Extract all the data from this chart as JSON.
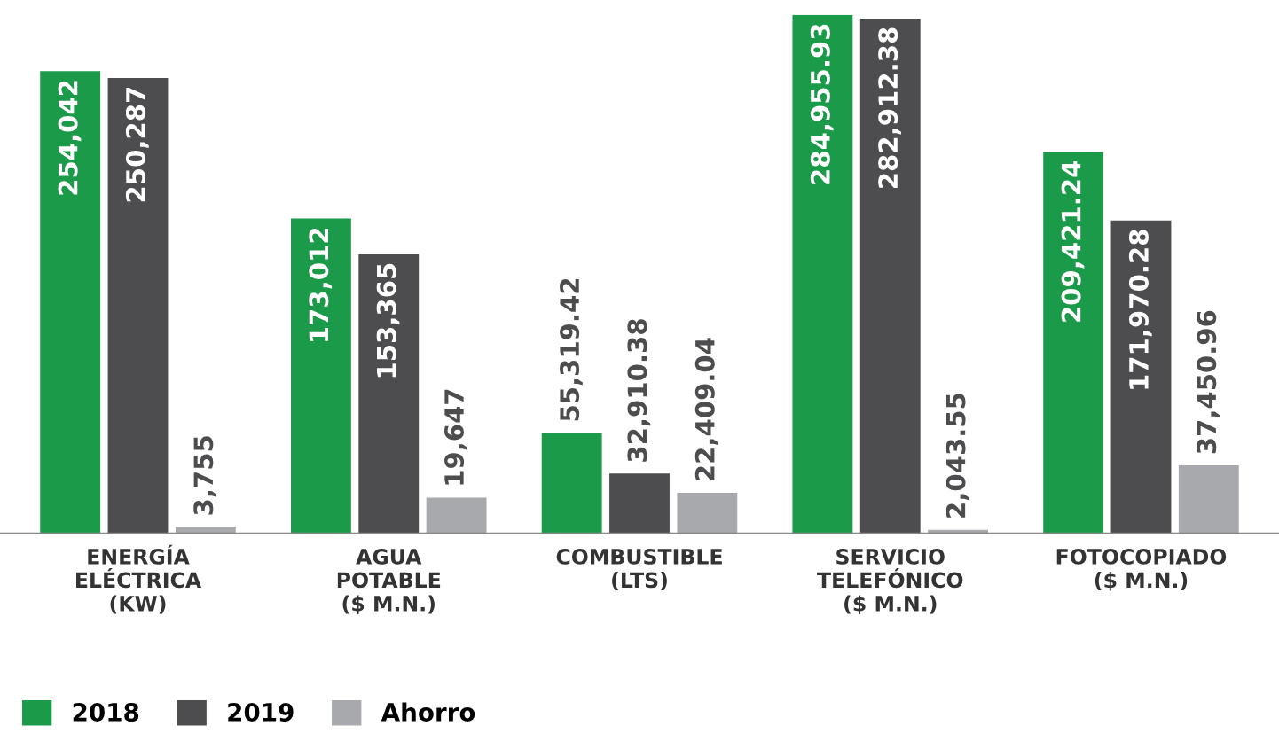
{
  "chart_data": {
    "type": "bar",
    "categories": [
      "ENERGÍA\nELÉCTRICA\n(KW)",
      "AGUA\nPOTABLE\n($ M.N.)",
      "COMBUSTIBLE\n(LTS)",
      "SERVICIO\nTELEFÓNICO\n($ M.N.)",
      "FOTOCOPIADO\n($ M.N.)"
    ],
    "series": [
      {
        "name": "2018",
        "color": "#1b9a4a",
        "values": [
          254042,
          173012,
          55319.42,
          284955.93,
          209421.24
        ],
        "value_labels": [
          "254,042",
          "173,012",
          "55,319.42",
          "284,955.93",
          "209,421.24"
        ]
      },
      {
        "name": "2019",
        "color": "#4d4d4f",
        "values": [
          250287,
          153365,
          32910.38,
          282912.38,
          171970.28
        ],
        "value_labels": [
          "250,287",
          "153,365",
          "32,910.38",
          "282,912.38",
          "171,970.28"
        ]
      },
      {
        "name": "Ahorro",
        "color": "#a7a9ac",
        "values": [
          3755,
          19647,
          22409.04,
          2043.55,
          37450.96
        ],
        "value_labels": [
          "3,755",
          "19,647",
          "22,409.04",
          "2,043.55",
          "37,450.96"
        ]
      }
    ],
    "legend": "bottom left",
    "grid": false
  }
}
